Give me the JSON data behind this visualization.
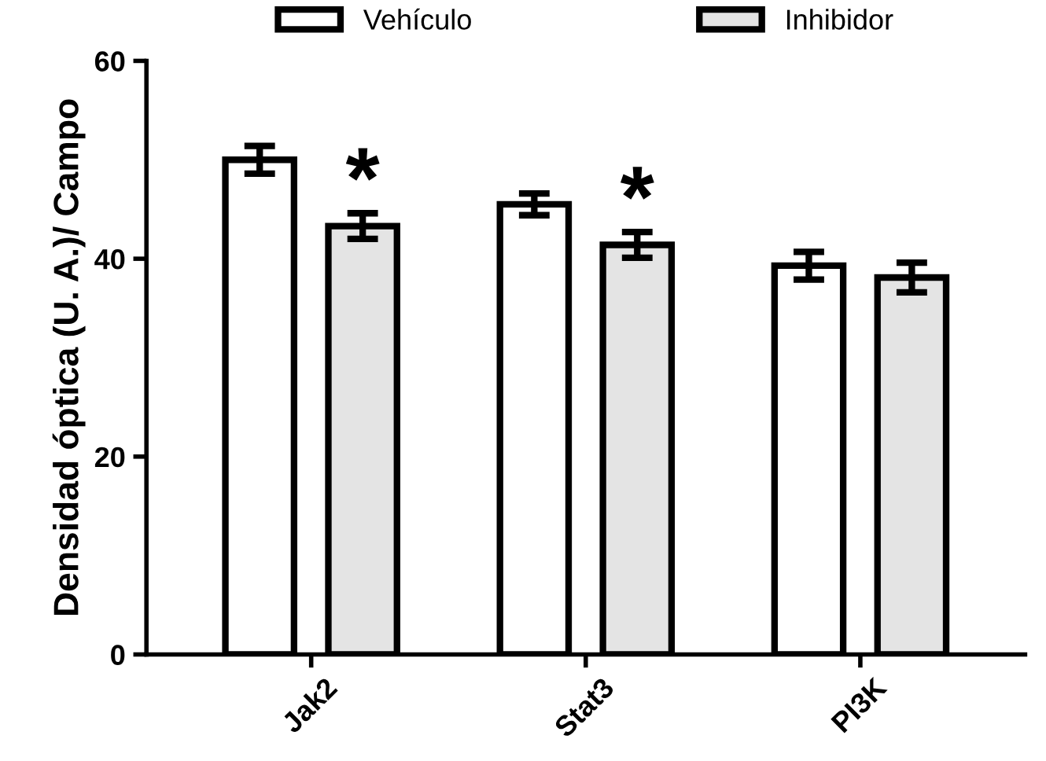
{
  "chart_data": {
    "type": "bar",
    "ylabel": "Densidad óptica (U. A.)/ Campo",
    "categories": [
      "Jak2",
      "Stat3",
      "PI3K"
    ],
    "series": [
      {
        "name": "Vehículo",
        "color": "#ffffff",
        "values": [
          50,
          45.5,
          39.3
        ],
        "errors": [
          1.4,
          1.1,
          1.4
        ]
      },
      {
        "name": "Inhibidor",
        "color": "#e4e4e4",
        "values": [
          43.3,
          41.4,
          38.1
        ],
        "errors": [
          1.3,
          1.3,
          1.5
        ]
      }
    ],
    "ylim": [
      0,
      60
    ],
    "yticks": [
      0,
      20,
      40,
      60
    ],
    "grid": false,
    "legend": "top",
    "annotations": [
      "*",
      "*"
    ]
  }
}
